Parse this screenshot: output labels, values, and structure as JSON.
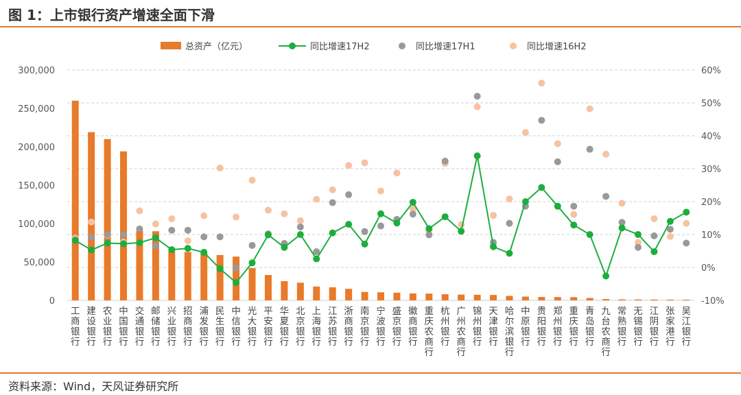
{
  "figure": {
    "title": "图 1：上市银行资产增速全面下滑",
    "source": "资料来源：Wind，天风证券研究所"
  },
  "colors": {
    "bar": "#e87a2b",
    "line17H2": "#1cae3d",
    "dot17H1": "#999999",
    "dot16H2": "#f6c3a0",
    "accent": "#e07a2c"
  },
  "chart_data": {
    "type": "bar+line+scatter",
    "legend": [
      "总资产（亿元）",
      "同比增速17H2",
      "同比增速17H1",
      "同比增速16H2"
    ],
    "legend_position": "top",
    "grid": "horizontal dashed",
    "left_axis": {
      "range": [
        0,
        300000
      ],
      "ticks": [
        "0",
        "50,000",
        "100,000",
        "150,000",
        "200,000",
        "250,000",
        "300,000"
      ]
    },
    "right_axis": {
      "range": [
        -10,
        60
      ],
      "unit": "%",
      "ticks": [
        "-10%",
        "0%",
        "10%",
        "20%",
        "30%",
        "40%",
        "50%",
        "60%"
      ]
    },
    "categories": [
      "工商银行",
      "建设银行",
      "农业银行",
      "中国银行",
      "交通银行",
      "邮储银行",
      "兴业银行",
      "招商银行",
      "浦发银行",
      "民生银行",
      "中信银行",
      "光大银行",
      "平安银行",
      "华夏银行",
      "北京银行",
      "上海银行",
      "江苏银行",
      "浙商银行",
      "南京银行",
      "宁波银行",
      "盛京银行",
      "徽商银行",
      "重庆农商行",
      "杭州银行",
      "广州农商行",
      "锦州银行",
      "天津银行",
      "哈尔滨银行",
      "中原银行",
      "贵阳银行",
      "郑州银行",
      "重庆银行",
      "青岛银行",
      "九台农商行",
      "常熟银行",
      "无锡银行",
      "江阴银行",
      "张家港行",
      "吴江银行"
    ],
    "series": [
      {
        "name": "总资产（亿元）",
        "kind": "bar",
        "axis": "left",
        "values": [
          260000,
          219000,
          210000,
          194000,
          90500,
          90000,
          64000,
          63000,
          61000,
          59000,
          57000,
          42000,
          33000,
          25000,
          23000,
          18000,
          17000,
          15000,
          11000,
          10500,
          10000,
          9000,
          8800,
          8000,
          7500,
          7300,
          7000,
          5800,
          4900,
          4400,
          4300,
          4200,
          3100,
          1700,
          1300,
          1200,
          1100,
          1000,
          900
        ]
      },
      {
        "name": "同比增速17H2",
        "kind": "line",
        "axis": "right",
        "values": [
          8.2,
          5.3,
          7.4,
          7.2,
          7.5,
          9.0,
          5.4,
          5.8,
          4.6,
          -0.4,
          -4.6,
          1.4,
          9.9,
          6.1,
          10.0,
          2.6,
          10.5,
          13.1,
          7.1,
          16.3,
          13.5,
          19.8,
          11.8,
          15.4,
          11.0,
          33.9,
          6.3,
          4.3,
          20.0,
          24.3,
          18.6,
          12.9,
          10.0,
          -2.6,
          12.0,
          10.0,
          4.8,
          14.0,
          16.8
        ]
      },
      {
        "name": "同比增速17H1",
        "kind": "scatter",
        "axis": "right",
        "values": [
          8.4,
          9.2,
          10.0,
          10.0,
          11.7,
          6.5,
          11.3,
          11.3,
          9.3,
          9.3,
          -0.1,
          6.7,
          10.2,
          7.3,
          12.3,
          4.8,
          19.7,
          22.1,
          10.9,
          12.6,
          14.6,
          16.2,
          9.9,
          32.3,
          null,
          52.0,
          7.6,
          13.4,
          18.6,
          44.7,
          32.1,
          18.6,
          35.9,
          21.6,
          13.7,
          6.1,
          9.6,
          11.6,
          7.4
        ]
      },
      {
        "name": "同比增速16H2",
        "kind": "scatter",
        "axis": "right",
        "values": [
          8.9,
          13.8,
          9.8,
          7.7,
          17.2,
          13.2,
          14.8,
          8.1,
          15.7,
          30.2,
          15.3,
          26.5,
          17.4,
          16.3,
          14.2,
          20.7,
          23.6,
          31.0,
          31.8,
          23.2,
          28.7,
          17.8,
          11.1,
          31.6,
          13.0,
          48.8,
          15.8,
          20.8,
          41.0,
          56.0,
          37.6,
          16.1,
          48.2,
          34.4,
          19.5,
          7.6,
          14.8,
          9.4,
          13.4
        ]
      }
    ]
  }
}
